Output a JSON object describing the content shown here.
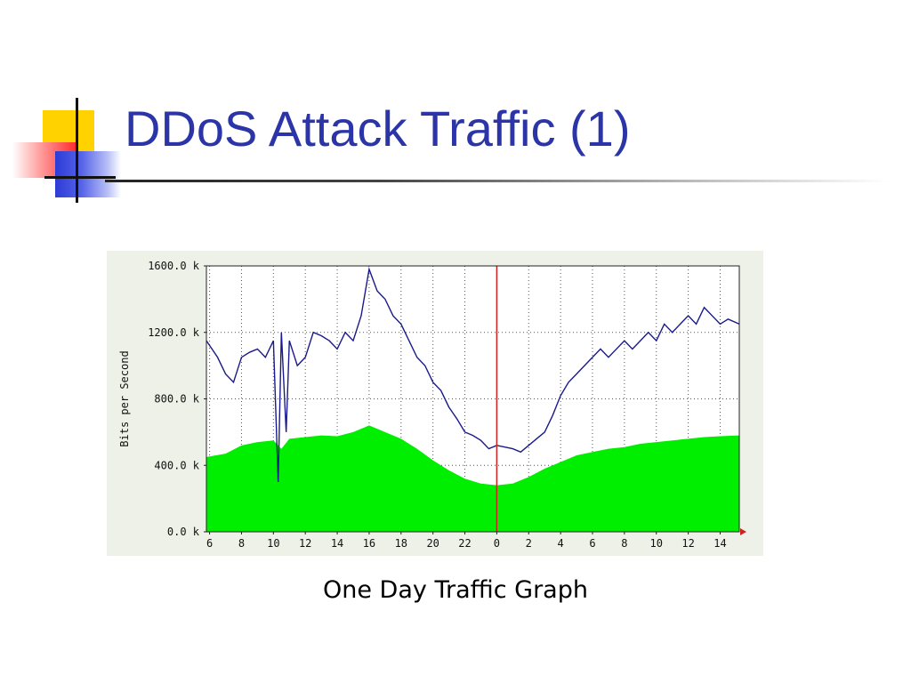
{
  "slide": {
    "title": "DDoS Attack Traffic (1)",
    "caption": "One Day Traffic Graph"
  },
  "colors": {
    "title": "#2b35a8",
    "inbound_fill": "#00ee00",
    "outbound_line": "#1a1a8c",
    "marker_line": "#cc2222",
    "grid": "#555555"
  },
  "ornament_icon": "title-ornament-icon",
  "chart_data": {
    "type": "area",
    "ylabel": "Bits per Second",
    "xlabel": "",
    "y_unit": "k",
    "ylim": [
      0,
      1600
    ],
    "y_ticks": [
      "0.0 k",
      "400.0 k",
      "800.0 k",
      "1200.0 k",
      "1600.0 k"
    ],
    "x_tick_labels": [
      "6",
      "8",
      "10",
      "12",
      "14",
      "16",
      "18",
      "20",
      "22",
      "0",
      "2",
      "4",
      "6",
      "8",
      "10",
      "12",
      "14"
    ],
    "x_ticks_hours": [
      6,
      8,
      10,
      12,
      14,
      16,
      18,
      20,
      22,
      24,
      26,
      28,
      30,
      32,
      34,
      36,
      38
    ],
    "xlim_hours": [
      5.8,
      39.2
    ],
    "grid": true,
    "current_time_marker_hour": 24,
    "series": [
      {
        "kind": "area",
        "x_hours": [
          5.8,
          7,
          8,
          9,
          10,
          10.5,
          11,
          12,
          13,
          14,
          15,
          16,
          17,
          18,
          19,
          20,
          21,
          22,
          23,
          24,
          25,
          26,
          27,
          28,
          29,
          30,
          31,
          32,
          33,
          34,
          35,
          36,
          37,
          38,
          39.2
        ],
        "values": [
          450,
          470,
          520,
          540,
          550,
          500,
          560,
          570,
          580,
          575,
          600,
          640,
          600,
          560,
          500,
          430,
          370,
          320,
          290,
          280,
          290,
          330,
          380,
          420,
          460,
          480,
          500,
          510,
          530,
          540,
          550,
          560,
          570,
          575,
          580
        ]
      },
      {
        "kind": "line",
        "x_hours": [
          5.8,
          6.5,
          7,
          7.5,
          8,
          8.5,
          9,
          9.5,
          10,
          10.3,
          10.5,
          10.8,
          11,
          11.5,
          12,
          12.5,
          13,
          13.5,
          14,
          14.5,
          15,
          15.5,
          16,
          16.5,
          17,
          17.5,
          18,
          18.5,
          19,
          19.5,
          20,
          20.5,
          21,
          21.5,
          22,
          22.5,
          23,
          23.5,
          24,
          24.5,
          25,
          25.5,
          26,
          26.5,
          27,
          27.5,
          28,
          28.5,
          29,
          29.5,
          30,
          30.5,
          31,
          31.5,
          32,
          32.5,
          33,
          33.5,
          34,
          34.5,
          35,
          35.5,
          36,
          36.5,
          37,
          37.5,
          38,
          38.5,
          39.2
        ],
        "values": [
          1150,
          1050,
          950,
          900,
          1050,
          1080,
          1100,
          1050,
          1150,
          300,
          1200,
          600,
          1150,
          1000,
          1050,
          1200,
          1180,
          1150,
          1100,
          1200,
          1150,
          1300,
          1580,
          1450,
          1400,
          1300,
          1250,
          1150,
          1050,
          1000,
          900,
          850,
          750,
          680,
          600,
          580,
          550,
          500,
          520,
          510,
          500,
          480,
          520,
          560,
          600,
          700,
          820,
          900,
          950,
          1000,
          1050,
          1100,
          1050,
          1100,
          1150,
          1100,
          1150,
          1200,
          1150,
          1250,
          1200,
          1250,
          1300,
          1250,
          1350,
          1300,
          1250,
          1280,
          1250
        ]
      }
    ]
  }
}
